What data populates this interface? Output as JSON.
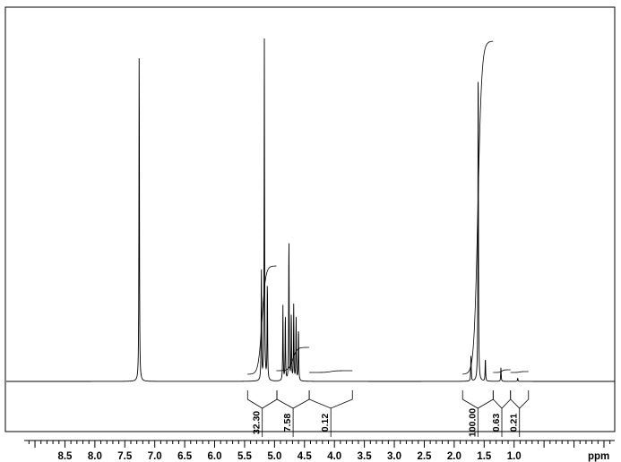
{
  "chart_data": {
    "type": "line",
    "title": "",
    "xlabel": "ppm",
    "ylabel": "",
    "x_reversed": true,
    "xlim": [
      9.18,
      -0.68
    ],
    "grid": false,
    "ticks": [
      {
        "v": 8.5,
        "label": "8.5"
      },
      {
        "v": 8.0,
        "label": "8.0"
      },
      {
        "v": 7.5,
        "label": "7.5"
      },
      {
        "v": 7.0,
        "label": "7.0"
      },
      {
        "v": 6.5,
        "label": "6.5"
      },
      {
        "v": 6.0,
        "label": "6.0"
      },
      {
        "v": 5.5,
        "label": "5.5"
      },
      {
        "v": 5.0,
        "label": "5.0"
      },
      {
        "v": 4.5,
        "label": "4.5"
      },
      {
        "v": 4.0,
        "label": "4.0"
      },
      {
        "v": 3.5,
        "label": "3.5"
      },
      {
        "v": 3.0,
        "label": "3.0"
      },
      {
        "v": 2.5,
        "label": "2.5"
      },
      {
        "v": 2.0,
        "label": "2.0"
      },
      {
        "v": 1.5,
        "label": "1.5"
      },
      {
        "v": 1.0,
        "label": "1.0"
      }
    ],
    "peaks": [
      {
        "x": 7.26,
        "height": 1.0,
        "clipped": true
      },
      {
        "x": 5.17,
        "height": 1.0,
        "clipped": true
      },
      {
        "x": 5.22,
        "height": 0.34
      },
      {
        "x": 5.12,
        "height": 0.3
      },
      {
        "x": 4.86,
        "height": 0.22
      },
      {
        "x": 4.82,
        "height": 0.2
      },
      {
        "x": 4.76,
        "height": 0.43
      },
      {
        "x": 4.72,
        "height": 0.2
      },
      {
        "x": 4.68,
        "height": 0.22
      },
      {
        "x": 4.64,
        "height": 0.19
      },
      {
        "x": 4.6,
        "height": 0.16
      },
      {
        "x": 1.6,
        "height": 1.0,
        "clipped": true
      },
      {
        "x": 1.72,
        "height": 0.08
      },
      {
        "x": 1.48,
        "height": 0.07
      },
      {
        "x": 1.22,
        "height": 0.04
      },
      {
        "x": 0.94,
        "height": 0.01
      }
    ],
    "integrals": [
      {
        "from": 5.45,
        "to": 4.96,
        "label": "32.30"
      },
      {
        "from": 4.96,
        "to": 4.42,
        "label": "7.58"
      },
      {
        "from": 4.42,
        "to": 3.7,
        "label": "0.12"
      },
      {
        "from": 1.86,
        "to": 1.35,
        "label": "100.00"
      },
      {
        "from": 1.35,
        "to": 1.06,
        "label": "0.63"
      },
      {
        "from": 1.06,
        "to": 0.76,
        "label": "0.21"
      }
    ]
  }
}
